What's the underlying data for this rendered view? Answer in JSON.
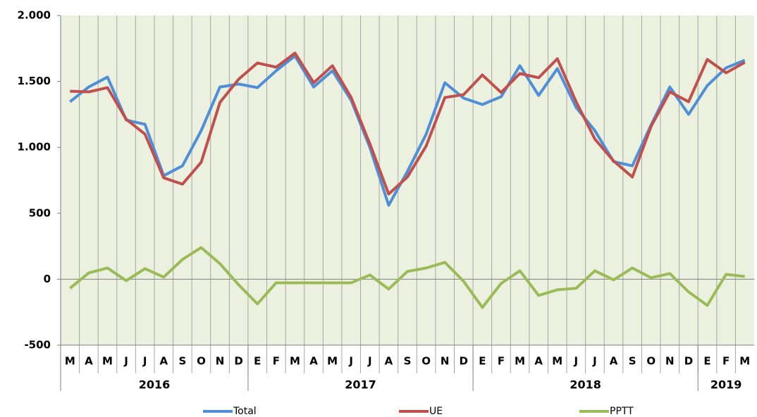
{
  "chart_data": {
    "type": "line",
    "groups": [
      {
        "label": "2016",
        "categories": [
          "M",
          "A",
          "M",
          "J",
          "J",
          "A",
          "S",
          "O",
          "N",
          "D"
        ]
      },
      {
        "label": "2017",
        "categories": [
          "E",
          "F",
          "M",
          "A",
          "M",
          "J",
          "J",
          "A",
          "S",
          "O",
          "N",
          "D"
        ]
      },
      {
        "label": "2018",
        "categories": [
          "E",
          "F",
          "M",
          "A",
          "M",
          "J",
          "J",
          "A",
          "S",
          "O",
          "N",
          "D"
        ]
      },
      {
        "label": "2019",
        "categories": [
          "E",
          "F",
          "M"
        ]
      }
    ],
    "series": [
      {
        "name": "Total",
        "color": "#4f8fd8",
        "values": [
          1346,
          1458,
          1533,
          1207,
          1175,
          785,
          860,
          1127,
          1458,
          1480,
          1453,
          1581,
          1693,
          1458,
          1581,
          1357,
          999,
          561,
          817,
          1100,
          1490,
          1373,
          1325,
          1384,
          1619,
          1394,
          1597,
          1303,
          1127,
          892,
          860,
          1170,
          1458,
          1250,
          1469,
          1603,
          1661
        ]
      },
      {
        "name": "UE",
        "color": "#c0504d",
        "values": [
          1426,
          1421,
          1453,
          1213,
          1100,
          769,
          721,
          887,
          1341,
          1517,
          1640,
          1608,
          1715,
          1490,
          1619,
          1378,
          1026,
          646,
          775,
          1010,
          1378,
          1400,
          1549,
          1416,
          1560,
          1528,
          1672,
          1346,
          1063,
          897,
          775,
          1159,
          1421,
          1346,
          1667,
          1565,
          1645
        ]
      },
      {
        "name": "PPTT",
        "color": "#9bbb59",
        "values": [
          -69,
          48,
          85,
          -11,
          80,
          16,
          150,
          240,
          118,
          -43,
          -187,
          -27,
          -27,
          -27,
          -27,
          -27,
          32,
          -75,
          59,
          85,
          128,
          -16,
          -214,
          -32,
          64,
          -123,
          -80,
          -69,
          64,
          -5,
          85,
          11,
          43,
          -96,
          -198,
          37,
          21
        ]
      }
    ],
    "ylim": [
      -500,
      2000
    ],
    "yticks": [
      {
        "value": 2000,
        "label": "2.000"
      },
      {
        "value": 1500,
        "label": "1.500"
      },
      {
        "value": 1000,
        "label": "1.000"
      },
      500,
      0,
      -500
    ],
    "legend": "bottom",
    "background": "#ebf1de"
  }
}
